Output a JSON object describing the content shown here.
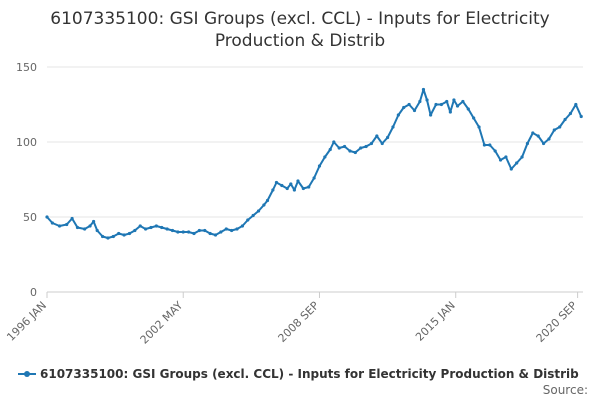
{
  "chart_data": {
    "type": "line",
    "title": "6107335100: GSI Groups (excl. CCL) - Inputs for Electricity Production & Distrib",
    "title_lines": [
      "6107335100: GSI Groups (excl. CCL) - Inputs for Electricity",
      "Production & Distrib"
    ],
    "xlabel": "",
    "ylabel": "",
    "ylim": [
      0,
      150
    ],
    "yticks": [
      0,
      50,
      100,
      150
    ],
    "xlim": [
      "1996-01",
      "2020-12"
    ],
    "xticks": [
      {
        "label": "1996 JAN",
        "date": "1996-01"
      },
      {
        "label": "2002 MAY",
        "date": "2002-05"
      },
      {
        "label": "2008 SEP",
        "date": "2008-09"
      },
      {
        "label": "2015 JAN",
        "date": "2015-01"
      },
      {
        "label": "2020 SEP",
        "date": "2020-09"
      }
    ],
    "grid": true,
    "legend_position": "bottom",
    "source_label": "Source:",
    "series": [
      {
        "name": "6107335100: GSI Groups (excl. CCL) - Inputs for Electricity Production & Distrib",
        "color": "#1f77b4",
        "points": [
          [
            "1996-01",
            50
          ],
          [
            "1996-04",
            46
          ],
          [
            "1996-08",
            44
          ],
          [
            "1996-12",
            45
          ],
          [
            "1997-03",
            49
          ],
          [
            "1997-06",
            43
          ],
          [
            "1997-10",
            42
          ],
          [
            "1998-01",
            44
          ],
          [
            "1998-03",
            47
          ],
          [
            "1998-05",
            41
          ],
          [
            "1998-08",
            37
          ],
          [
            "1998-11",
            36
          ],
          [
            "1999-02",
            37
          ],
          [
            "1999-05",
            39
          ],
          [
            "1999-08",
            38
          ],
          [
            "1999-11",
            39
          ],
          [
            "2000-02",
            41
          ],
          [
            "2000-05",
            44
          ],
          [
            "2000-08",
            42
          ],
          [
            "2000-11",
            43
          ],
          [
            "2001-02",
            44
          ],
          [
            "2001-05",
            43
          ],
          [
            "2001-08",
            42
          ],
          [
            "2001-11",
            41
          ],
          [
            "2002-02",
            40
          ],
          [
            "2002-05",
            40
          ],
          [
            "2002-08",
            40
          ],
          [
            "2002-11",
            39
          ],
          [
            "2003-02",
            41
          ],
          [
            "2003-05",
            41
          ],
          [
            "2003-08",
            39
          ],
          [
            "2003-11",
            38
          ],
          [
            "2004-02",
            40
          ],
          [
            "2004-05",
            42
          ],
          [
            "2004-08",
            41
          ],
          [
            "2004-11",
            42
          ],
          [
            "2005-02",
            44
          ],
          [
            "2005-05",
            48
          ],
          [
            "2005-08",
            51
          ],
          [
            "2005-11",
            54
          ],
          [
            "2006-02",
            58
          ],
          [
            "2006-04",
            61
          ],
          [
            "2006-07",
            68
          ],
          [
            "2006-09",
            73
          ],
          [
            "2006-12",
            71
          ],
          [
            "2007-03",
            69
          ],
          [
            "2007-05",
            72
          ],
          [
            "2007-07",
            68
          ],
          [
            "2007-09",
            74
          ],
          [
            "2007-12",
            69
          ],
          [
            "2008-03",
            70
          ],
          [
            "2008-06",
            76
          ],
          [
            "2008-09",
            84
          ],
          [
            "2008-12",
            90
          ],
          [
            "2009-03",
            95
          ],
          [
            "2009-05",
            100
          ],
          [
            "2009-08",
            96
          ],
          [
            "2009-11",
            97
          ],
          [
            "2010-02",
            94
          ],
          [
            "2010-05",
            93
          ],
          [
            "2010-08",
            96
          ],
          [
            "2010-11",
            97
          ],
          [
            "2011-02",
            99
          ],
          [
            "2011-05",
            104
          ],
          [
            "2011-08",
            99
          ],
          [
            "2011-11",
            103
          ],
          [
            "2012-02",
            110
          ],
          [
            "2012-05",
            118
          ],
          [
            "2012-08",
            123
          ],
          [
            "2012-11",
            125
          ],
          [
            "2013-02",
            121
          ],
          [
            "2013-05",
            127
          ],
          [
            "2013-07",
            135
          ],
          [
            "2013-09",
            128
          ],
          [
            "2013-11",
            118
          ],
          [
            "2014-02",
            125
          ],
          [
            "2014-05",
            125
          ],
          [
            "2014-08",
            127
          ],
          [
            "2014-10",
            120
          ],
          [
            "2014-12",
            128
          ],
          [
            "2015-02",
            124
          ],
          [
            "2015-05",
            127
          ],
          [
            "2015-08",
            122
          ],
          [
            "2015-11",
            116
          ],
          [
            "2016-02",
            110
          ],
          [
            "2016-05",
            98
          ],
          [
            "2016-08",
            98
          ],
          [
            "2016-11",
            94
          ],
          [
            "2017-02",
            88
          ],
          [
            "2017-05",
            90
          ],
          [
            "2017-08",
            82
          ],
          [
            "2017-11",
            86
          ],
          [
            "2018-02",
            90
          ],
          [
            "2018-05",
            99
          ],
          [
            "2018-08",
            106
          ],
          [
            "2018-11",
            104
          ],
          [
            "2019-02",
            99
          ],
          [
            "2019-05",
            102
          ],
          [
            "2019-08",
            108
          ],
          [
            "2019-11",
            110
          ],
          [
            "2020-02",
            115
          ],
          [
            "2020-05",
            119
          ],
          [
            "2020-08",
            125
          ],
          [
            "2020-11",
            117
          ]
        ]
      }
    ]
  }
}
